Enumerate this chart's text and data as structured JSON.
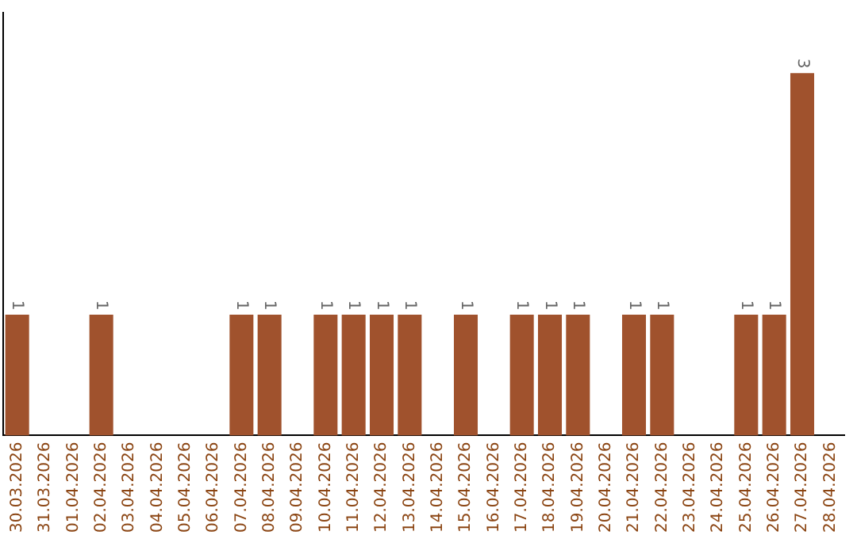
{
  "chart_data": {
    "type": "bar",
    "categories": [
      "30.03.2026",
      "31.03.2026",
      "01.04.2026",
      "02.04.2026",
      "03.04.2026",
      "04.04.2026",
      "05.04.2026",
      "06.04.2026",
      "07.04.2026",
      "08.04.2026",
      "09.04.2026",
      "10.04.2026",
      "11.04.2026",
      "12.04.2026",
      "13.04.2026",
      "14.04.2026",
      "15.04.2026",
      "16.04.2026",
      "17.04.2026",
      "18.04.2026",
      "19.04.2026",
      "20.04.2026",
      "21.04.2026",
      "22.04.2026",
      "23.04.2026",
      "24.04.2026",
      "25.04.2026",
      "26.04.2026",
      "27.04.2026",
      "28.04.2026"
    ],
    "values": [
      1,
      0,
      0,
      1,
      0,
      0,
      0,
      0,
      1,
      1,
      0,
      1,
      1,
      1,
      1,
      0,
      1,
      0,
      1,
      1,
      1,
      0,
      1,
      1,
      0,
      0,
      1,
      1,
      3,
      0
    ],
    "value_labels": [
      "1",
      null,
      null,
      "1",
      null,
      null,
      null,
      null,
      "1",
      "1",
      null,
      "1",
      "1",
      "1",
      "1",
      null,
      "1",
      null,
      "1",
      "1",
      "1",
      null,
      "1",
      "1",
      null,
      null,
      "1",
      "1",
      "3",
      null
    ],
    "color": "#a0522d",
    "tick_labels": "x",
    "grid": false,
    "legend": false
  }
}
